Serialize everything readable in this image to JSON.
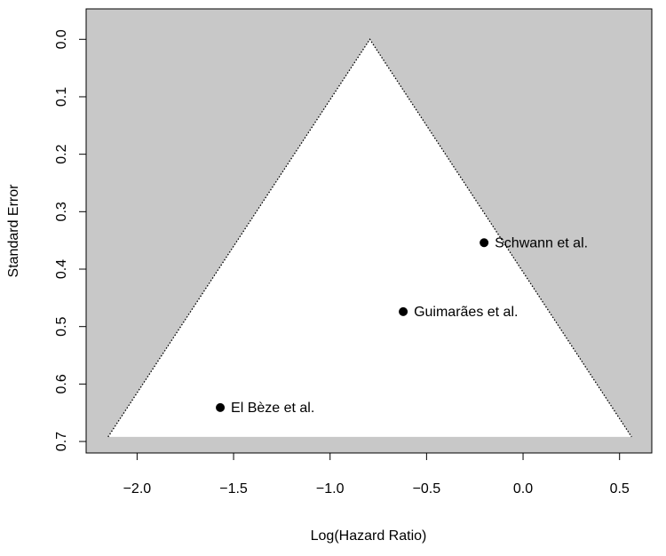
{
  "chart_data": {
    "type": "funnel",
    "x_label": "Log(Hazard Ratio)",
    "y_label": "Standard Error",
    "x": [
      -0.202,
      -0.621,
      -1.569
    ],
    "values": [
      0.354,
      0.474,
      0.641
    ],
    "point_labels": [
      "Schwann et al.",
      "Guimarães et al.",
      "El Bèze et al."
    ],
    "summary_estimate": -0.794,
    "max_se": 0.692,
    "xlim": [
      -2.264,
      0.667
    ],
    "xticks": [
      {
        "value": -2.0,
        "label": "−2.0"
      },
      {
        "value": -1.5,
        "label": "−1.5"
      },
      {
        "value": -1.0,
        "label": "−1.0"
      },
      {
        "value": -0.5,
        "label": "−0.5"
      },
      {
        "value": 0.0,
        "label": "0.0"
      },
      0.5
    ],
    "ylim": [
      -0.053,
      0.72
    ],
    "y_reversed": true,
    "yticks": [
      {
        "value": 0.0,
        "label": "0.0"
      },
      0.1,
      0.2,
      0.3,
      0.4,
      0.5,
      0.6,
      0.7
    ],
    "background_color": "#c8c8c8",
    "funnel_color": "#ffffff",
    "point_color": "#000000"
  }
}
